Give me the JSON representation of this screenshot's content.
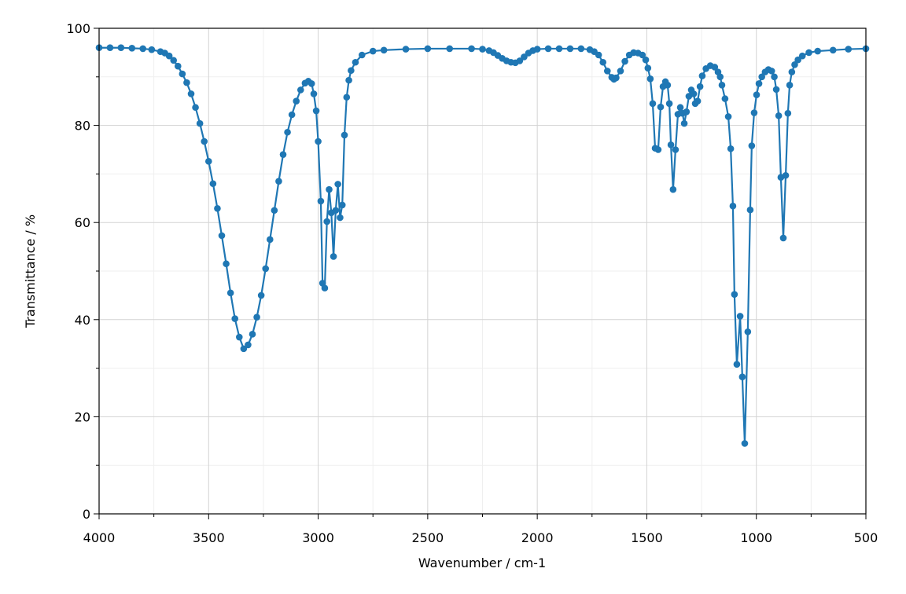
{
  "chart_data": {
    "type": "line",
    "markers": true,
    "color": "#1f77b4",
    "xlabel": "Wavenumber / cm-1",
    "ylabel": "Transmittance / %",
    "xlim": [
      4000,
      500
    ],
    "ylim": [
      0,
      100
    ],
    "xticks": [
      4000,
      3500,
      3000,
      2500,
      2000,
      1500,
      1000,
      500
    ],
    "yticks": [
      0,
      20,
      40,
      60,
      80,
      100
    ],
    "x_minor_ticks": [
      3750,
      3250,
      2750,
      2250,
      1750,
      1250,
      750
    ],
    "y_minor_ticks": [
      10,
      30,
      50,
      70,
      90
    ],
    "grid": true,
    "x": [
      4000,
      3950,
      3900,
      3850,
      3800,
      3760,
      3720,
      3700,
      3680,
      3660,
      3640,
      3620,
      3600,
      3580,
      3560,
      3540,
      3520,
      3500,
      3480,
      3460,
      3440,
      3420,
      3400,
      3380,
      3360,
      3340,
      3320,
      3300,
      3280,
      3260,
      3240,
      3220,
      3200,
      3180,
      3160,
      3140,
      3120,
      3100,
      3080,
      3060,
      3045,
      3030,
      3020,
      3009,
      3000,
      2988,
      2980,
      2970,
      2960,
      2950,
      2940,
      2930,
      2920,
      2910,
      2900,
      2890,
      2880,
      2870,
      2860,
      2850,
      2830,
      2800,
      2750,
      2700,
      2600,
      2500,
      2400,
      2300,
      2250,
      2220,
      2200,
      2180,
      2160,
      2140,
      2120,
      2100,
      2080,
      2060,
      2040,
      2020,
      2000,
      1950,
      1900,
      1850,
      1800,
      1760,
      1740,
      1720,
      1700,
      1680,
      1660,
      1650,
      1640,
      1620,
      1600,
      1580,
      1560,
      1540,
      1520,
      1505,
      1495,
      1484,
      1473,
      1462,
      1448,
      1437,
      1426,
      1415,
      1405,
      1397,
      1390,
      1380,
      1369,
      1358,
      1347,
      1337,
      1329,
      1319,
      1308,
      1297,
      1286,
      1279,
      1268,
      1257,
      1247,
      1230,
      1210,
      1190,
      1175,
      1165,
      1157,
      1143,
      1128,
      1117,
      1107,
      1100,
      1089,
      1074,
      1064,
      1053,
      1039,
      1028,
      1021,
      1010,
      999,
      988,
      975,
      960,
      945,
      930,
      918,
      909,
      898,
      888,
      877,
      866,
      856,
      848,
      838,
      825,
      810,
      790,
      760,
      720,
      650,
      580,
      500
    ],
    "values": [
      96,
      96,
      96,
      95.9,
      95.8,
      95.6,
      95.2,
      94.9,
      94.3,
      93.4,
      92.2,
      90.6,
      88.8,
      86.5,
      83.7,
      80.4,
      76.7,
      72.6,
      68.0,
      62.9,
      57.3,
      51.5,
      45.5,
      40.2,
      36.4,
      34.0,
      34.8,
      37.0,
      40.5,
      45.0,
      50.5,
      56.5,
      62.5,
      68.5,
      74.0,
      78.6,
      82.2,
      85.0,
      87.3,
      88.7,
      89.1,
      88.6,
      86.5,
      83.0,
      76.7,
      64.4,
      47.5,
      46.5,
      60.2,
      66.8,
      62.0,
      53.0,
      62.5,
      67.9,
      61.0,
      63.6,
      78.0,
      85.8,
      89.3,
      91.3,
      93.0,
      94.5,
      95.3,
      95.5,
      95.7,
      95.8,
      95.8,
      95.8,
      95.7,
      95.4,
      95.0,
      94.4,
      93.8,
      93.3,
      93.0,
      92.9,
      93.3,
      94.1,
      94.9,
      95.4,
      95.7,
      95.8,
      95.8,
      95.8,
      95.8,
      95.6,
      95.2,
      94.5,
      93.0,
      91.2,
      89.9,
      89.5,
      89.8,
      91.2,
      93.2,
      94.5,
      95.0,
      94.9,
      94.5,
      93.5,
      91.8,
      89.6,
      84.5,
      75.3,
      75.0,
      83.8,
      88.0,
      89.0,
      88.3,
      84.5,
      76.0,
      66.8,
      75.0,
      82.3,
      83.7,
      82.5,
      80.4,
      82.8,
      86.0,
      87.3,
      86.5,
      84.5,
      85.0,
      88.0,
      90.2,
      91.7,
      92.3,
      92.0,
      91.0,
      90.0,
      88.3,
      85.5,
      81.8,
      75.2,
      63.4,
      45.2,
      30.8,
      40.7,
      28.2,
      14.5,
      37.5,
      62.6,
      75.8,
      82.6,
      86.3,
      88.6,
      90.0,
      91.0,
      91.5,
      91.2,
      90.0,
      87.4,
      82.0,
      69.3,
      56.8,
      69.7,
      82.5,
      88.3,
      91.0,
      92.5,
      93.5,
      94.3,
      95.0,
      95.3,
      95.5,
      95.7,
      95.8
    ]
  }
}
